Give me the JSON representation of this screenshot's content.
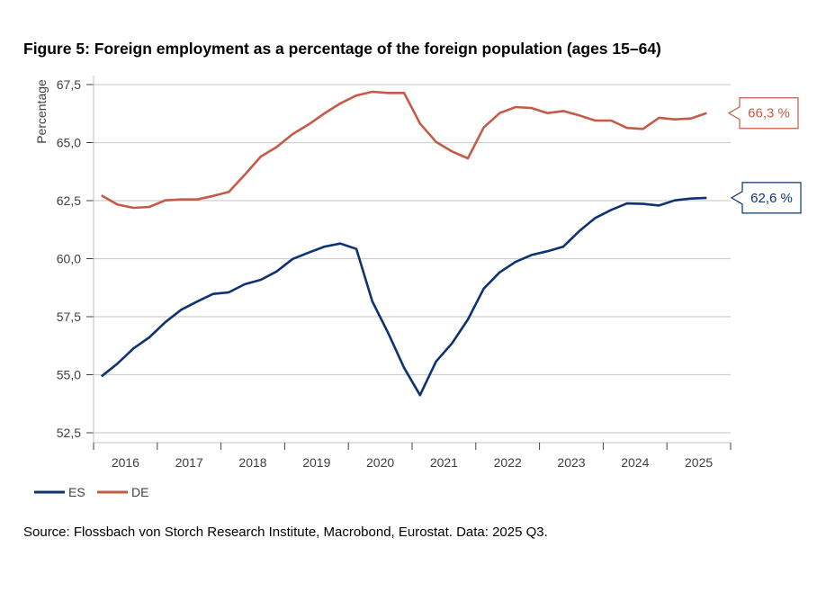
{
  "chart_data": {
    "type": "line",
    "title": "Figure 5: Foreign employment as a percentage of the foreign population (ages 15–64)",
    "xlabel": "",
    "ylabel": "Percentage",
    "ylim": [
      52.5,
      67.5
    ],
    "yticks": [
      "52,5",
      "55,0",
      "57,5",
      "60,0",
      "62,5",
      "65,0",
      "67,5"
    ],
    "ytick_values": [
      52.5,
      55,
      57.5,
      60,
      62.5,
      65,
      67.5
    ],
    "xticks": [
      "2016",
      "2017",
      "2018",
      "2019",
      "2020",
      "2021",
      "2022",
      "2023",
      "2024",
      "2025"
    ],
    "x_frequency": "quarterly, 2016 Q1 – 2025 Q3",
    "grid": true,
    "legend_position": "bottom-left",
    "series": [
      {
        "name": "ES",
        "color": "#0d3370",
        "end_label": "62,6 %",
        "values": [
          54.93,
          55.48,
          56.13,
          56.61,
          57.26,
          57.8,
          58.15,
          58.48,
          58.55,
          58.9,
          59.09,
          59.45,
          59.99,
          60.26,
          60.52,
          60.65,
          60.42,
          58.16,
          56.8,
          55.3,
          54.12,
          55.57,
          56.35,
          57.38,
          58.71,
          59.41,
          59.86,
          60.16,
          60.32,
          60.52,
          61.19,
          61.75,
          62.1,
          62.38,
          62.36,
          62.29,
          62.51,
          62.59,
          62.62
        ]
      },
      {
        "name": "DE",
        "color": "#c55a47",
        "end_label": "66,3 %",
        "values": [
          62.72,
          62.33,
          62.19,
          62.23,
          62.51,
          62.55,
          62.55,
          62.7,
          62.88,
          63.62,
          64.4,
          64.81,
          65.37,
          65.78,
          66.26,
          66.69,
          67.03,
          67.19,
          67.14,
          67.14,
          65.82,
          65.03,
          64.62,
          64.32,
          65.65,
          66.27,
          66.53,
          66.49,
          66.27,
          66.36,
          66.17,
          65.95,
          65.95,
          65.63,
          65.59,
          66.07,
          66.0,
          66.04,
          66.27
        ]
      }
    ],
    "source": "Source: Flossbach von Storch Research Institute, Macrobond, Eurostat. Data: 2025 Q3."
  }
}
